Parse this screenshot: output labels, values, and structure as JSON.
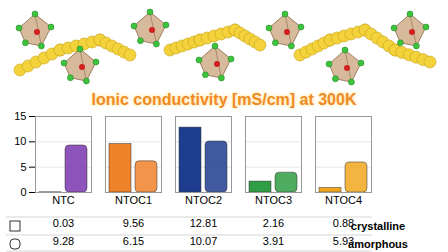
{
  "chart_data": {
    "type": "bar",
    "title": "Ionic conductivity [mS/cm] at 300K",
    "categories": [
      "NTC",
      "NTOC1",
      "NTOC2",
      "NTOC3",
      "NTOC4"
    ],
    "series": [
      {
        "name": "crystalline",
        "values": [
          0.03,
          9.56,
          12.81,
          2.16,
          0.88
        ]
      },
      {
        "name": "amorphous",
        "values": [
          9.28,
          6.15,
          10.07,
          3.91,
          5.93
        ]
      }
    ],
    "colors": [
      "#7b35b0",
      "#f0822a",
      "#1e3d8f",
      "#2f9e44",
      "#f2a81e"
    ],
    "ylim": [
      0,
      15
    ],
    "yticks": [
      0,
      5,
      10,
      15
    ],
    "grid": true,
    "data_labels": true
  }
}
